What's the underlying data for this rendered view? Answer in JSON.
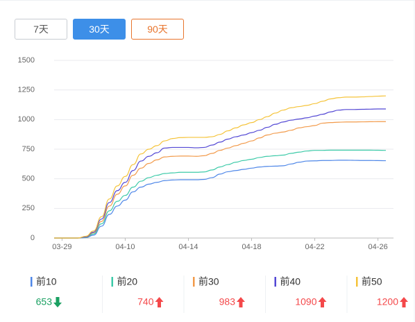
{
  "buttons": [
    {
      "label": "7天",
      "active": false
    },
    {
      "label": "30天",
      "active": true
    },
    {
      "label": "90天",
      "active": false
    }
  ],
  "chart_data": {
    "type": "line",
    "categories": [
      null,
      "03-29",
      null,
      null,
      null,
      null,
      null,
      null,
      null,
      "04-10",
      null,
      null,
      null,
      null,
      null,
      null,
      null,
      "04-14",
      null,
      null,
      null,
      null,
      null,
      null,
      null,
      "04-18",
      null,
      null,
      null,
      null,
      null,
      null,
      null,
      "04-22",
      null,
      null,
      null,
      null,
      null,
      null,
      null,
      "04-26",
      null
    ],
    "ylim": [
      0,
      1500
    ],
    "yticks": [
      0,
      250,
      500,
      750,
      1000,
      {
        "value": 1250,
        "label": "1250"
      },
      1500
    ],
    "grid": true,
    "series": [
      {
        "name": "前10",
        "color": "#4d86e8",
        "values": [
          0,
          0,
          0,
          0,
          3,
          25,
          100,
          200,
          270,
          320,
          390,
          430,
          455,
          470,
          485,
          490,
          492,
          492,
          492,
          495,
          510,
          540,
          560,
          570,
          580,
          590,
          600,
          605,
          607,
          610,
          625,
          640,
          650,
          652,
          655,
          655,
          657,
          657,
          656,
          655,
          655,
          654,
          653
        ]
      },
      {
        "name": "前20",
        "color": "#3ccaa8",
        "values": [
          0,
          0,
          0,
          0,
          5,
          35,
          120,
          230,
          310,
          360,
          430,
          480,
          510,
          530,
          545,
          550,
          555,
          555,
          555,
          558,
          575,
          600,
          620,
          640,
          655,
          665,
          680,
          690,
          695,
          700,
          715,
          725,
          735,
          740,
          740,
          742,
          742,
          742,
          742,
          742,
          742,
          741,
          740
        ]
      },
      {
        "name": "前30",
        "color": "#f29a4a",
        "values": [
          0,
          0,
          0,
          0,
          8,
          45,
          140,
          270,
          370,
          440,
          530,
          590,
          630,
          660,
          685,
          690,
          692,
          692,
          690,
          695,
          715,
          740,
          760,
          780,
          800,
          820,
          845,
          870,
          885,
          895,
          910,
          930,
          940,
          950,
          970,
          975,
          978,
          980,
          980,
          981,
          982,
          983,
          983
        ]
      },
      {
        "name": "前40",
        "color": "#5247d4",
        "values": [
          0,
          0,
          0,
          0,
          10,
          50,
          160,
          300,
          400,
          470,
          570,
          650,
          690,
          720,
          760,
          765,
          765,
          765,
          762,
          765,
          785,
          810,
          835,
          855,
          870,
          890,
          910,
          935,
          960,
          980,
          995,
          1005,
          1015,
          1030,
          1045,
          1065,
          1080,
          1085,
          1085,
          1087,
          1088,
          1090,
          1090
        ]
      },
      {
        "name": "前50",
        "color": "#f5c338",
        "values": [
          0,
          0,
          0,
          0,
          15,
          60,
          180,
          330,
          440,
          520,
          620,
          710,
          750,
          780,
          820,
          840,
          848,
          850,
          850,
          850,
          855,
          875,
          905,
          930,
          955,
          975,
          1000,
          1025,
          1055,
          1080,
          1100,
          1110,
          1120,
          1135,
          1155,
          1175,
          1185,
          1190,
          1190,
          1192,
          1195,
          1198,
          1200
        ]
      }
    ]
  },
  "summary": [
    {
      "name": "前10",
      "value": 653,
      "trend": "down"
    },
    {
      "name": "前20",
      "value": 740,
      "trend": "up"
    },
    {
      "name": "前30",
      "value": 983,
      "trend": "up"
    },
    {
      "name": "前40",
      "value": 1090,
      "trend": "up"
    },
    {
      "name": "前50",
      "value": 1200,
      "trend": "up"
    }
  ]
}
